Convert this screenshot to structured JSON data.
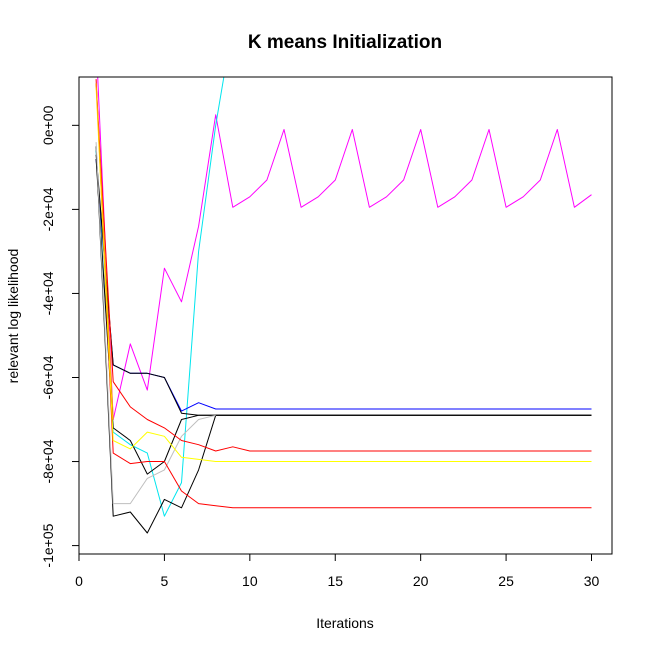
{
  "chart_data": {
    "type": "line",
    "title": "K means Initialization",
    "xlabel": "Iterations",
    "ylabel": "relevant log likelihood",
    "xlim": [
      0,
      31.2
    ],
    "ylim": [
      -102000,
      11500
    ],
    "xticks": [
      0,
      5,
      10,
      15,
      20,
      25,
      30
    ],
    "yticks": [
      {
        "value": 0,
        "label": "0e+00"
      },
      {
        "value": -20000,
        "label": "-2e+04"
      },
      {
        "value": -40000,
        "label": "-4e+04"
      },
      {
        "value": -60000,
        "label": "-6e+04"
      },
      {
        "value": -80000,
        "label": "-8e+04"
      },
      {
        "value": -100000,
        "label": "-1e+05"
      }
    ],
    "grid": false,
    "legend": "none",
    "series": [
      {
        "color": "#ff00ff",
        "x": [
          1,
          2,
          3,
          4,
          5,
          6,
          7,
          8,
          9,
          10,
          11,
          12,
          13,
          14,
          15,
          16,
          17,
          18,
          19,
          20,
          21,
          22,
          23,
          24,
          25,
          26,
          27,
          28,
          29,
          30
        ],
        "y": [
          20000,
          -70000,
          -52000,
          -63000,
          -34000,
          -42000,
          -24000,
          2500,
          -19500,
          -17000,
          -13000,
          -1000,
          -19500,
          -17000,
          -13000,
          -1000,
          -19500,
          -17000,
          -13000,
          -1000,
          -19500,
          -17000,
          -13000,
          -1000,
          -19500,
          -17000,
          -13000,
          -1000,
          -19500,
          -16500
        ]
      },
      {
        "color": "#00e5ee",
        "x": [
          1,
          2,
          3,
          4,
          5,
          6,
          7,
          8,
          8.5
        ],
        "y": [
          -6000,
          -73000,
          -76000,
          -78000,
          -93000,
          -85000,
          -30000,
          0,
          12000
        ]
      },
      {
        "color": "#0000ff",
        "x": [
          1,
          2,
          3,
          4,
          5,
          6,
          7,
          8,
          9,
          10,
          11,
          12,
          13,
          14,
          15,
          16,
          17,
          18,
          19,
          20,
          21,
          22,
          23,
          24,
          25,
          26,
          27,
          28,
          29,
          30
        ],
        "y": [
          -8000,
          -57000,
          -59000,
          -59000,
          -60000,
          -68000,
          -66000,
          -67500,
          -67500,
          -67500,
          -67500,
          -67500,
          -67500,
          -67500,
          -67500,
          -67500,
          -67500,
          -67500,
          -67500,
          -67500,
          -67500,
          -67500,
          -67500,
          -67500,
          -67500,
          -67500,
          -67500,
          -67500,
          -67500,
          -67500
        ]
      },
      {
        "color": "#000000",
        "x": [
          1,
          2,
          3,
          4,
          5,
          6,
          7,
          8,
          9,
          10,
          11,
          12,
          13,
          14,
          15,
          16,
          17,
          18,
          19,
          20,
          21,
          22,
          23,
          24,
          25,
          26,
          27,
          28,
          29,
          30
        ],
        "y": [
          -7000,
          -57000,
          -59000,
          -59000,
          -60000,
          -68500,
          -69000,
          -69000,
          -69000,
          -69000,
          -69000,
          -69000,
          -69000,
          -69000,
          -69000,
          -69000,
          -69000,
          -69000,
          -69000,
          -69000,
          -69000,
          -69000,
          -69000,
          -69000,
          -69000,
          -69000,
          -69000,
          -69000,
          -69000,
          -69000
        ]
      },
      {
        "color": "#000000",
        "x": [
          1,
          2,
          3,
          4,
          5,
          6,
          7,
          8,
          9,
          10,
          11,
          12,
          13,
          14,
          15,
          16,
          17,
          18,
          19,
          20,
          21,
          22,
          23,
          24,
          25,
          26,
          27,
          28,
          29,
          30
        ],
        "y": [
          -5000,
          -93000,
          -92000,
          -97000,
          -89000,
          -91000,
          -82000,
          -69000,
          -69000,
          -69000,
          -69000,
          -69000,
          -69000,
          -69000,
          -69000,
          -69000,
          -69000,
          -69000,
          -69000,
          -69000,
          -69000,
          -69000,
          -69000,
          -69000,
          -69000,
          -69000,
          -69000,
          -69000,
          -69000,
          -69000
        ]
      },
      {
        "color": "#000000",
        "x": [
          1,
          2,
          3,
          4,
          5,
          6,
          7,
          8,
          9,
          10,
          11,
          12,
          13,
          14,
          15,
          16,
          17,
          18,
          19,
          20,
          21,
          22,
          23,
          24,
          25,
          26,
          27,
          28,
          29,
          30
        ],
        "y": [
          -8000,
          -72000,
          -75000,
          -83000,
          -80000,
          -70000,
          -69000,
          -69000,
          -69000,
          -69000,
          -69000,
          -69000,
          -69000,
          -69000,
          -69000,
          -69000,
          -69000,
          -69000,
          -69000,
          -69000,
          -69000,
          -69000,
          -69000,
          -69000,
          -69000,
          -69000,
          -69000,
          -69000,
          -69000,
          -69000
        ]
      },
      {
        "color": "#bebebe",
        "x": [
          1,
          2,
          3,
          4,
          5,
          6,
          7,
          8
        ],
        "y": [
          -4000,
          -90000,
          -90000,
          -84000,
          -82000,
          -74000,
          -70000,
          -69000
        ]
      },
      {
        "color": "#ff0000",
        "x": [
          1,
          2,
          3,
          4,
          5,
          6,
          7,
          8,
          9,
          10,
          11,
          12,
          13,
          14,
          15,
          16,
          17,
          18,
          19,
          20,
          21,
          22,
          23,
          24,
          25,
          26,
          27,
          28,
          29,
          30
        ],
        "y": [
          10000,
          -61000,
          -67000,
          -70000,
          -72000,
          -75000,
          -76000,
          -77500,
          -76500,
          -77500,
          -77500,
          -77500,
          -77500,
          -77500,
          -77500,
          -77500,
          -77500,
          -77500,
          -77500,
          -77500,
          -77500,
          -77500,
          -77500,
          -77500,
          -77500,
          -77500,
          -77500,
          -77500,
          -77500,
          -77500
        ]
      },
      {
        "color": "#ff0000",
        "x": [
          1,
          2,
          3,
          4,
          5,
          6,
          7,
          8,
          9,
          10,
          11,
          12,
          13,
          14,
          15,
          16,
          17,
          18,
          19,
          20,
          21,
          22,
          23,
          24,
          25,
          26,
          27,
          28,
          29,
          30
        ],
        "y": [
          11000,
          -78000,
          -80500,
          -80000,
          -80000,
          -87000,
          -90000,
          -90500,
          -91000,
          -91000,
          -91000,
          -91000,
          -91000,
          -91000,
          -91000,
          -91000,
          -91000,
          -91000,
          -91000,
          -91000,
          -91000,
          -91000,
          -91000,
          -91000,
          -91000,
          -91000,
          -91000,
          -91000,
          -91000,
          -91000
        ]
      },
      {
        "color": "#ffff00",
        "x": [
          1,
          2,
          3,
          4,
          5,
          6,
          7,
          8,
          9,
          10,
          11,
          12,
          13,
          14,
          15,
          16,
          17,
          18,
          19,
          20,
          21,
          22,
          23,
          24,
          25,
          26,
          27,
          28,
          29,
          30
        ],
        "y": [
          9000,
          -75000,
          -77000,
          -73000,
          -74000,
          -79000,
          -79500,
          -80000,
          -80000,
          -80000,
          -80000,
          -80000,
          -80000,
          -80000,
          -80000,
          -80000,
          -80000,
          -80000,
          -80000,
          -80000,
          -80000,
          -80000,
          -80000,
          -80000,
          -80000,
          -80000,
          -80000,
          -80000,
          -80000,
          -80000
        ]
      },
      {
        "color": "#ffa500",
        "x": [
          1,
          2
        ],
        "y": [
          10000,
          -70000
        ]
      }
    ]
  }
}
